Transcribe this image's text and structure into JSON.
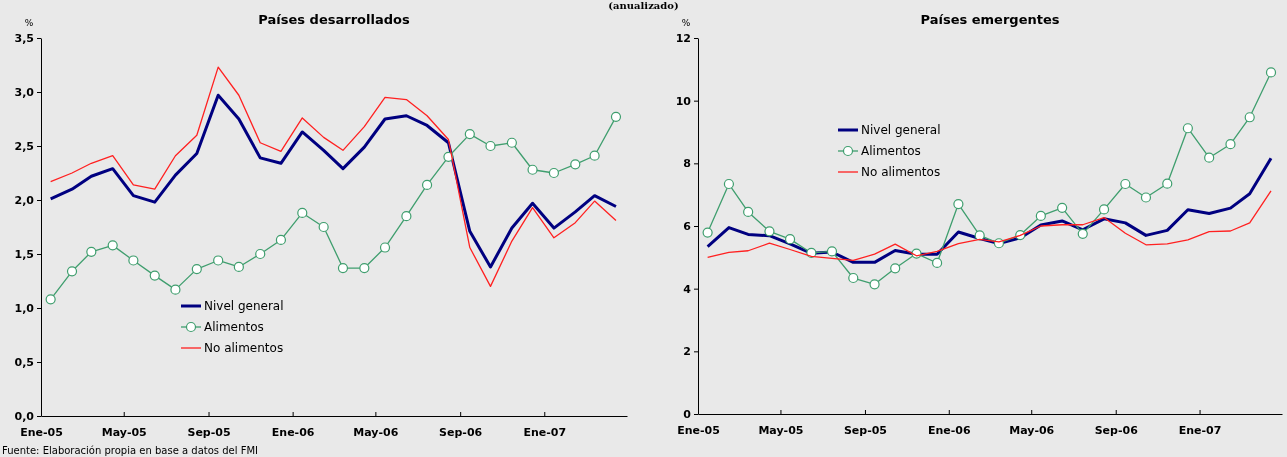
{
  "chart_data": [
    {
      "type": "line",
      "title": "Países desarrollados",
      "ylabel": "%",
      "legend": "bottom left",
      "annotations": [
        "(anualizado)",
        "Fuente: Elaboración propia en base a datos del FMI"
      ],
      "x": [
        "2005-01-15",
        "2005-02-15",
        "2005-03-15",
        "2005-04-15",
        "2005-05-15",
        "2005-06-15",
        "2005-07-15",
        "2005-08-15",
        "2005-09-15",
        "2005-10-15",
        "2005-11-15",
        "2005-12-15",
        "2006-01-15",
        "2006-02-15",
        "2006-03-15",
        "2006-04-15",
        "2006-05-15",
        "2006-06-15",
        "2006-07-15",
        "2006-08-15",
        "2006-09-15",
        "2006-10-15",
        "2006-11-15",
        "2006-12-15",
        "2007-01-15",
        "2007-02-15",
        "2007-03-15",
        "2007-04-15"
      ],
      "xlim": [
        "2005-01-01",
        "2007-05-01"
      ],
      "xticks": [
        {
          "value": "2005-01-01",
          "label": "Ene-05"
        },
        {
          "value": "2005-05-01",
          "label": "May-05"
        },
        {
          "value": "2005-09-01",
          "label": "Sep-05"
        },
        {
          "value": "2006-01-01",
          "label": "Ene-06"
        },
        {
          "value": "2006-05-01",
          "label": "May-06"
        },
        {
          "value": "2006-09-01",
          "label": "Sep-06"
        },
        {
          "value": "2007-01-01",
          "label": "Ene-07"
        }
      ],
      "ylim": [
        0,
        3.5
      ],
      "yticks": [
        {
          "value": 0,
          "label": "0,0"
        },
        {
          "value": 0.5,
          "label": "0,5"
        },
        {
          "value": 1,
          "label": "1,0"
        },
        {
          "value": 1.5,
          "label": "1,5"
        },
        {
          "value": 2,
          "label": "2,0"
        },
        {
          "value": 2.5,
          "label": "2,5"
        },
        {
          "value": 3,
          "label": "3,0"
        },
        {
          "value": 3.5,
          "label": "3,5"
        }
      ],
      "series": [
        {
          "name": "Nivel general",
          "color": "#000080",
          "marker": "none",
          "values": [
            2.01,
            2.1,
            2.22,
            2.29,
            2.04,
            1.98,
            2.23,
            2.43,
            2.97,
            2.75,
            2.39,
            2.34,
            2.63,
            2.46,
            2.29,
            2.49,
            2.75,
            2.78,
            2.69,
            2.53,
            1.71,
            1.38,
            1.74,
            1.97,
            1.74,
            1.89,
            2.04,
            1.94
          ]
        },
        {
          "name": "Alimentos",
          "color": "#3f9e6e",
          "marker": "circle",
          "values": [
            1.08,
            1.34,
            1.52,
            1.58,
            1.44,
            1.3,
            1.17,
            1.36,
            1.44,
            1.38,
            1.5,
            1.63,
            1.88,
            1.75,
            1.37,
            1.37,
            1.56,
            1.85,
            2.14,
            2.4,
            2.61,
            2.5,
            2.53,
            2.28,
            2.25,
            2.33,
            2.41,
            2.77
          ]
        },
        {
          "name": "No alimentos",
          "color": "#ff2020",
          "marker": "none",
          "values": [
            2.17,
            2.25,
            2.34,
            2.41,
            2.14,
            2.1,
            2.41,
            2.6,
            3.23,
            2.97,
            2.53,
            2.45,
            2.76,
            2.58,
            2.46,
            2.68,
            2.95,
            2.93,
            2.78,
            2.56,
            1.56,
            1.2,
            1.62,
            1.93,
            1.65,
            1.79,
            1.99,
            1.81
          ]
        }
      ]
    },
    {
      "type": "line",
      "title": "Países emergentes",
      "ylabel": "%",
      "legend": "top left",
      "x": [
        "2005-01-15",
        "2005-02-15",
        "2005-03-15",
        "2005-04-15",
        "2005-05-15",
        "2005-06-15",
        "2005-07-15",
        "2005-08-15",
        "2005-09-15",
        "2005-10-15",
        "2005-11-15",
        "2005-12-15",
        "2006-01-15",
        "2006-02-15",
        "2006-03-15",
        "2006-04-15",
        "2006-05-15",
        "2006-06-15",
        "2006-07-15",
        "2006-08-15",
        "2006-09-15",
        "2006-10-15",
        "2006-11-15",
        "2006-12-15",
        "2007-01-15",
        "2007-02-15",
        "2007-03-15",
        "2007-04-15"
      ],
      "xlim": [
        "2005-01-01",
        "2007-05-01"
      ],
      "xticks": [
        {
          "value": "2005-01-01",
          "label": "Ene-05"
        },
        {
          "value": "2005-05-01",
          "label": "May-05"
        },
        {
          "value": "2005-09-01",
          "label": "Sep-05"
        },
        {
          "value": "2006-01-01",
          "label": "Ene-06"
        },
        {
          "value": "2006-05-01",
          "label": "May-06"
        },
        {
          "value": "2006-09-01",
          "label": "Sep-06"
        },
        {
          "value": "2007-01-01",
          "label": "Ene-07"
        }
      ],
      "ylim": [
        0,
        12
      ],
      "yticks": [
        0,
        2,
        4,
        6,
        8,
        10,
        12
      ],
      "series": [
        {
          "name": "Nivel general",
          "color": "#000080",
          "marker": "none",
          "values": [
            5.34,
            5.95,
            5.73,
            5.69,
            5.43,
            5.13,
            5.17,
            4.84,
            4.84,
            5.22,
            5.1,
            5.1,
            5.81,
            5.6,
            5.44,
            5.62,
            6.03,
            6.16,
            5.88,
            6.23,
            6.1,
            5.7,
            5.86,
            6.52,
            6.4,
            6.57,
            7.03,
            8.16
          ]
        },
        {
          "name": "Alimentos",
          "color": "#3f9e6e",
          "marker": "circle",
          "values": [
            5.79,
            7.34,
            6.45,
            5.83,
            5.58,
            5.14,
            5.19,
            4.34,
            4.14,
            4.65,
            5.12,
            4.82,
            6.7,
            5.7,
            5.45,
            5.71,
            6.32,
            6.58,
            5.75,
            6.53,
            7.34,
            6.91,
            7.35,
            9.12,
            8.18,
            8.61,
            9.47,
            10.9
          ]
        },
        {
          "name": "No alimentos",
          "color": "#ff2020",
          "marker": "none",
          "values": [
            5.0,
            5.16,
            5.21,
            5.45,
            5.25,
            5.03,
            4.97,
            4.9,
            5.1,
            5.42,
            5.05,
            5.19,
            5.44,
            5.57,
            5.49,
            5.7,
            6.0,
            6.04,
            6.04,
            6.27,
            5.77,
            5.4,
            5.43,
            5.56,
            5.82,
            5.84,
            6.1,
            7.12
          ]
        }
      ]
    }
  ]
}
